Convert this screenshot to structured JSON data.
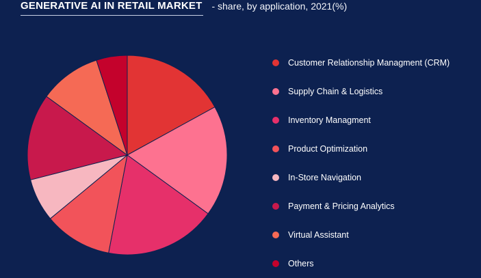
{
  "header": {
    "title": "GENERATIVE AI IN RETAIL MARKET",
    "subtitle": "-  share, by application, 2021(%)"
  },
  "chart_data": {
    "type": "pie",
    "title": "GENERATIVE AI IN RETAIL MARKET",
    "subtitle": "share, by application, 2021(%)",
    "legend_position": "right",
    "series": [
      {
        "name": "Customer Relationship Managment (CRM)",
        "value": 17,
        "color": "#e23434"
      },
      {
        "name": "Supply Chain & Logistics",
        "value": 18,
        "color": "#fd7290"
      },
      {
        "name": "Inventory Managment",
        "value": 18,
        "color": "#e6306a"
      },
      {
        "name": "Product Optimization",
        "value": 11,
        "color": "#f2535a"
      },
      {
        "name": "In-Store Navigation",
        "value": 7,
        "color": "#f7b7c0"
      },
      {
        "name": "Payment & Pricing Analytics",
        "value": 14,
        "color": "#c8194c"
      },
      {
        "name": "Virtual Assistant",
        "value": 10,
        "color": "#f56a55"
      },
      {
        "name": "Others",
        "value": 5,
        "color": "#c4022c"
      }
    ]
  }
}
